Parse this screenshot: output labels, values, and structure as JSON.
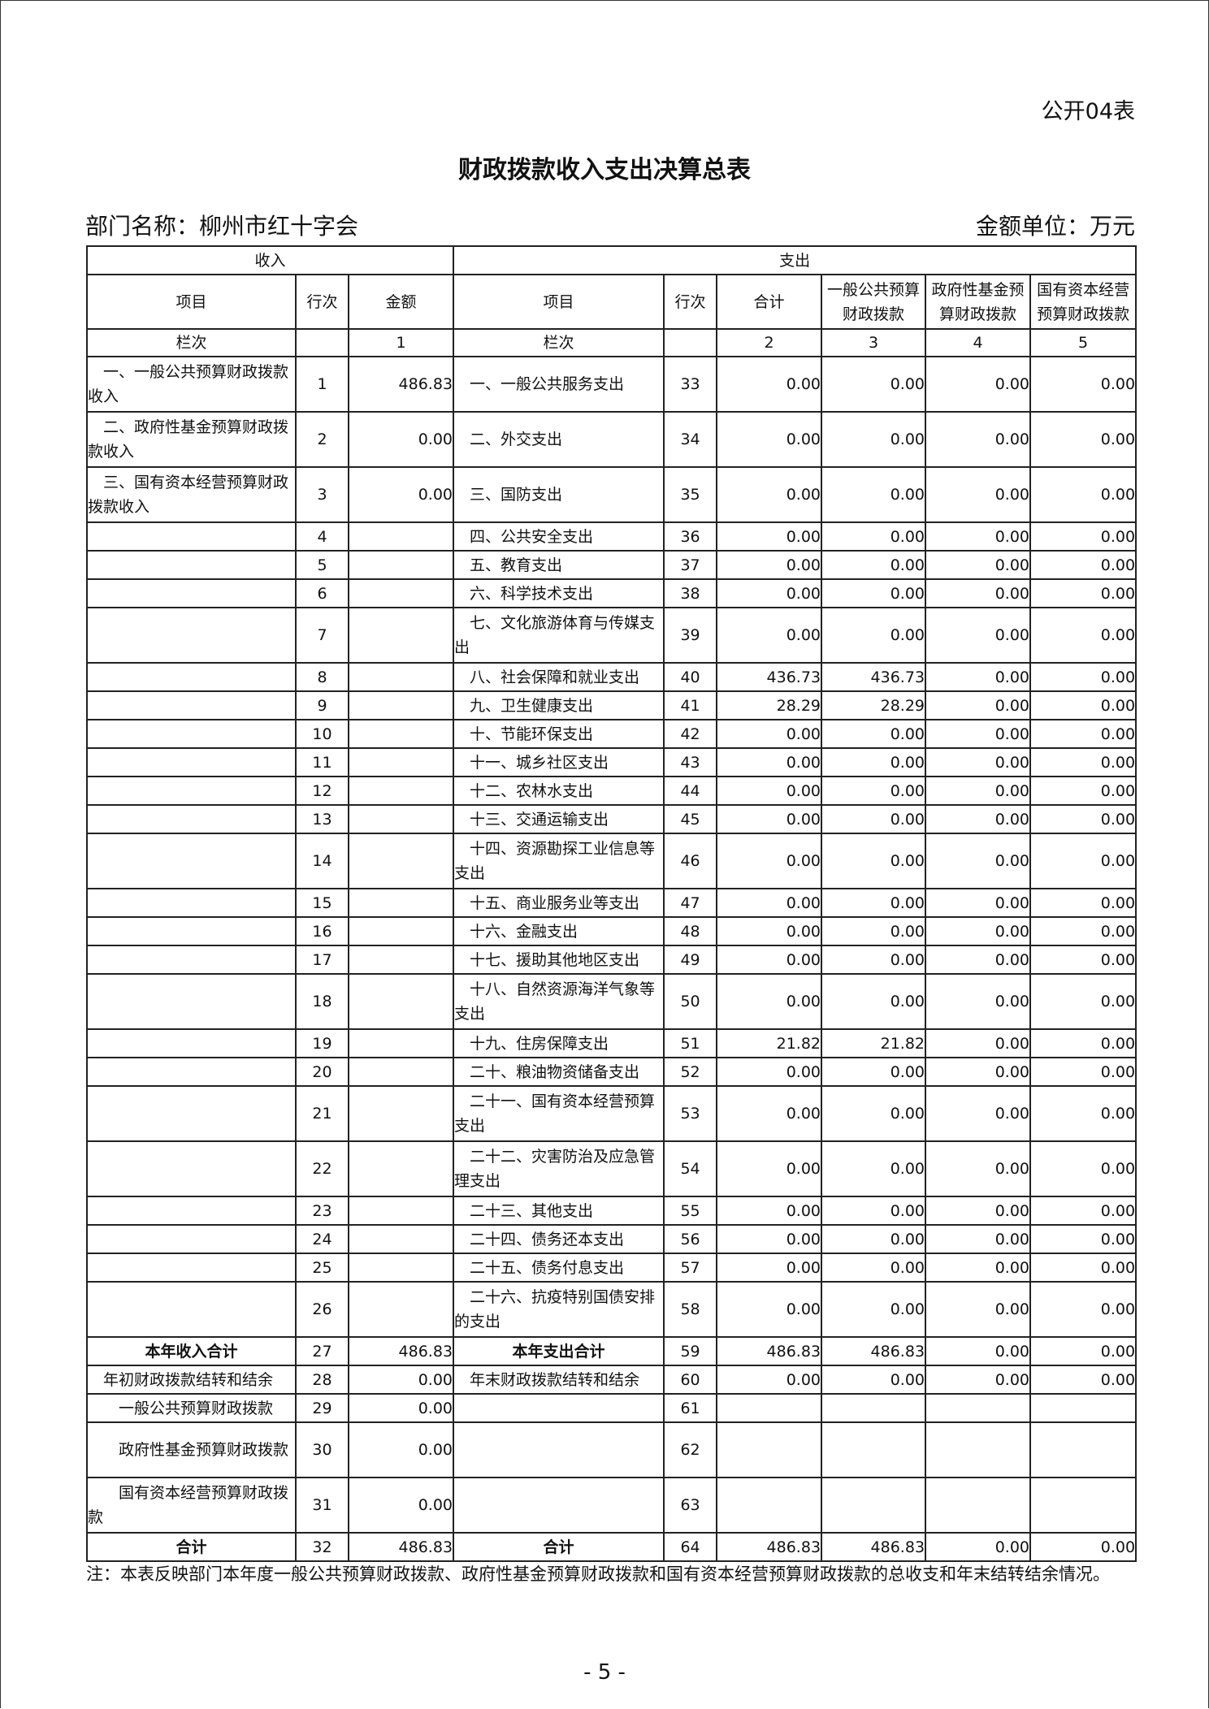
{
  "form_no": "公开04表",
  "title": "财政拨款收入支出决算总表",
  "dept": "部门名称：柳州市红十字会",
  "unit": "金额单位：万元",
  "header": {
    "income": "收入",
    "expense": "支出",
    "item": "项目",
    "line_no": "行次",
    "amount": "金额",
    "exp_item": "项目",
    "exp_line_no": "行次",
    "total": "合计",
    "general": "一般公共预算财政拨款",
    "gov_fund": "政府性基金预算财政拨款",
    "state_capital": "国有资本经营预算财政拨款",
    "col_label": "栏次",
    "exp_col_label": "栏次",
    "col1": "1",
    "col2": "2",
    "col3": "3",
    "col4": "4",
    "col5": "5"
  },
  "rows": [
    [
      "一、一般公共预算财政拨款收入",
      "1",
      "486.83",
      "一、一般公共服务支出",
      "33",
      "0.00",
      "0.00",
      "0.00",
      "0.00"
    ],
    [
      "二、政府性基金预算财政拨款收入",
      "2",
      "0.00",
      "二、外交支出",
      "34",
      "0.00",
      "0.00",
      "0.00",
      "0.00"
    ],
    [
      "三、国有资本经营预算财政拨款收入",
      "3",
      "0.00",
      "三、国防支出",
      "35",
      "0.00",
      "0.00",
      "0.00",
      "0.00"
    ],
    [
      "",
      "4",
      "",
      "四、公共安全支出",
      "36",
      "0.00",
      "0.00",
      "0.00",
      "0.00"
    ],
    [
      "",
      "5",
      "",
      "五、教育支出",
      "37",
      "0.00",
      "0.00",
      "0.00",
      "0.00"
    ],
    [
      "",
      "6",
      "",
      "六、科学技术支出",
      "38",
      "0.00",
      "0.00",
      "0.00",
      "0.00"
    ],
    [
      "",
      "7",
      "",
      "七、文化旅游体育与传媒支出",
      "39",
      "0.00",
      "0.00",
      "0.00",
      "0.00"
    ],
    [
      "",
      "8",
      "",
      "八、社会保障和就业支出",
      "40",
      "436.73",
      "436.73",
      "0.00",
      "0.00"
    ],
    [
      "",
      "9",
      "",
      "九、卫生健康支出",
      "41",
      "28.29",
      "28.29",
      "0.00",
      "0.00"
    ],
    [
      "",
      "10",
      "",
      "十、节能环保支出",
      "42",
      "0.00",
      "0.00",
      "0.00",
      "0.00"
    ],
    [
      "",
      "11",
      "",
      "十一、城乡社区支出",
      "43",
      "0.00",
      "0.00",
      "0.00",
      "0.00"
    ],
    [
      "",
      "12",
      "",
      "十二、农林水支出",
      "44",
      "0.00",
      "0.00",
      "0.00",
      "0.00"
    ],
    [
      "",
      "13",
      "",
      "十三、交通运输支出",
      "45",
      "0.00",
      "0.00",
      "0.00",
      "0.00"
    ],
    [
      "",
      "14",
      "",
      "十四、资源勘探工业信息等支出",
      "46",
      "0.00",
      "0.00",
      "0.00",
      "0.00"
    ],
    [
      "",
      "15",
      "",
      "十五、商业服务业等支出",
      "47",
      "0.00",
      "0.00",
      "0.00",
      "0.00"
    ],
    [
      "",
      "16",
      "",
      "十六、金融支出",
      "48",
      "0.00",
      "0.00",
      "0.00",
      "0.00"
    ],
    [
      "",
      "17",
      "",
      "十七、援助其他地区支出",
      "49",
      "0.00",
      "0.00",
      "0.00",
      "0.00"
    ],
    [
      "",
      "18",
      "",
      "十八、自然资源海洋气象等支出",
      "50",
      "0.00",
      "0.00",
      "0.00",
      "0.00"
    ],
    [
      "",
      "19",
      "",
      "十九、住房保障支出",
      "51",
      "21.82",
      "21.82",
      "0.00",
      "0.00"
    ],
    [
      "",
      "20",
      "",
      "二十、粮油物资储备支出",
      "52",
      "0.00",
      "0.00",
      "0.00",
      "0.00"
    ],
    [
      "",
      "21",
      "",
      "二十一、国有资本经营预算支出",
      "53",
      "0.00",
      "0.00",
      "0.00",
      "0.00"
    ],
    [
      "",
      "22",
      "",
      "二十二、灾害防治及应急管理支出",
      "54",
      "0.00",
      "0.00",
      "0.00",
      "0.00"
    ],
    [
      "",
      "23",
      "",
      "二十三、其他支出",
      "55",
      "0.00",
      "0.00",
      "0.00",
      "0.00"
    ],
    [
      "",
      "24",
      "",
      "二十四、债务还本支出",
      "56",
      "0.00",
      "0.00",
      "0.00",
      "0.00"
    ],
    [
      "",
      "25",
      "",
      "二十五、债务付息支出",
      "57",
      "0.00",
      "0.00",
      "0.00",
      "0.00"
    ],
    [
      "",
      "26",
      "",
      "二十六、抗疫特别国债安排的支出",
      "58",
      "0.00",
      "0.00",
      "0.00",
      "0.00"
    ],
    [
      "本年收入合计",
      "27",
      "486.83",
      "本年支出合计",
      "59",
      "486.83",
      "486.83",
      "0.00",
      "0.00"
    ],
    [
      "年初财政拨款结转和结余",
      "28",
      "0.00",
      "年末财政拨款结转和结余",
      "60",
      "0.00",
      "0.00",
      "0.00",
      "0.00"
    ],
    [
      "一般公共预算财政拨款",
      "29",
      "0.00",
      "",
      "61",
      "",
      "",
      "",
      ""
    ],
    [
      "政府性基金预算财政拨款",
      "30",
      "0.00",
      "",
      "62",
      "",
      "",
      "",
      ""
    ],
    [
      "国有资本经营预算财政拨款",
      "31",
      "0.00",
      "",
      "63",
      "",
      "",
      "",
      ""
    ],
    [
      "合计",
      "32",
      "486.83",
      "合计",
      "64",
      "486.83",
      "486.83",
      "0.00",
      "0.00"
    ]
  ],
  "note": "注：本表反映部门本年度一般公共预算财政拨款、政府性基金预算财政拨款和国有资本经营预算财政拨款的总收支和年末结转结余情况。",
  "page_number": "- 5 -"
}
